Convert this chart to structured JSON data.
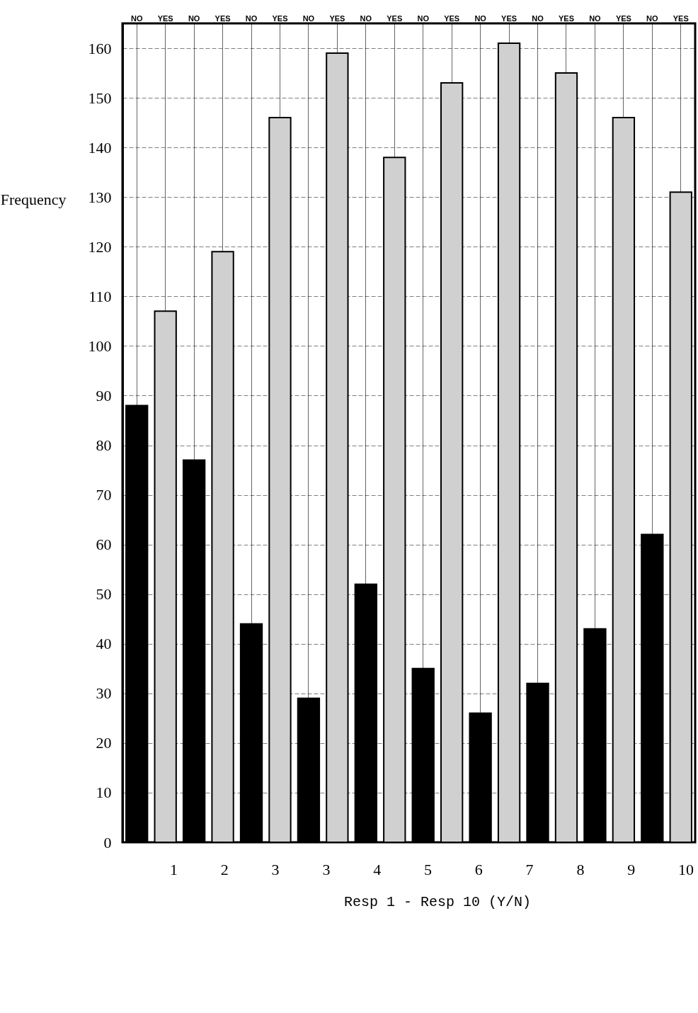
{
  "chart_data": {
    "type": "bar",
    "categories": [
      "NO",
      "YES",
      "NO",
      "YES",
      "NO",
      "YES",
      "NO",
      "YES",
      "NO",
      "YES",
      "NO",
      "YES",
      "NO",
      "YES",
      "NO",
      "YES",
      "NO",
      "YES",
      "NO",
      "YES"
    ],
    "values": [
      88,
      107,
      77,
      119,
      44,
      146,
      29,
      159,
      52,
      138,
      35,
      153,
      26,
      161,
      32,
      155,
      43,
      146,
      62,
      131
    ],
    "colors": [
      "#000000",
      "#d0d0d0",
      "#000000",
      "#d0d0d0",
      "#000000",
      "#d0d0d0",
      "#000000",
      "#d0d0d0",
      "#000000",
      "#d0d0d0",
      "#000000",
      "#d0d0d0",
      "#000000",
      "#d0d0d0",
      "#000000",
      "#d0d0d0",
      "#000000",
      "#d0d0d0",
      "#000000",
      "#d0d0d0"
    ],
    "ylabel": "Frequency",
    "xlabel": "Resp 1 - Resp 10 (Y/N)",
    "ylim": [
      0,
      165
    ],
    "yticks": [
      0,
      10,
      20,
      30,
      40,
      50,
      60,
      70,
      80,
      90,
      100,
      110,
      120,
      130,
      140,
      150,
      160
    ],
    "grid": true,
    "annotations": [
      "1",
      "2",
      "3",
      "3",
      "4",
      "5",
      "6",
      "7",
      "8",
      "9",
      "10"
    ]
  }
}
